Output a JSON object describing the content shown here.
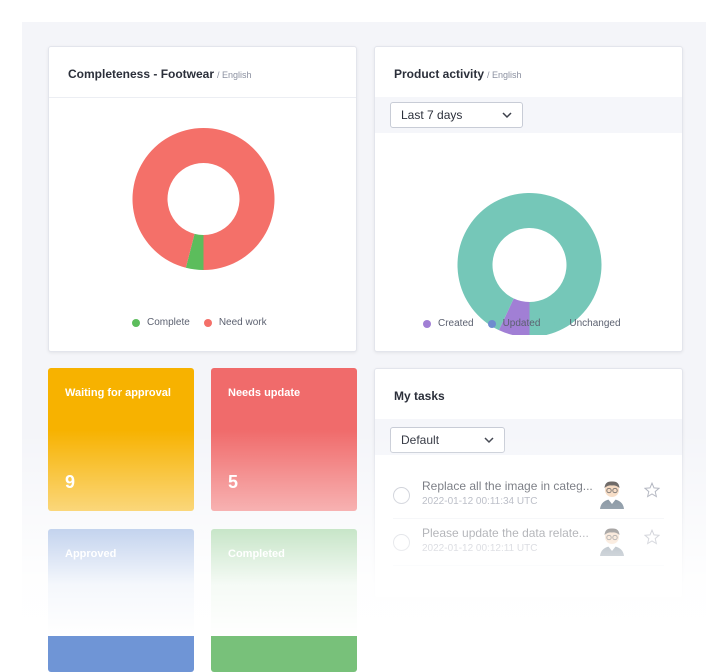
{
  "completeness": {
    "title": "Completeness - Footwear",
    "locale": "/ English",
    "legend": [
      {
        "label": "Complete",
        "color": "#5cbd5c"
      },
      {
        "label": "Need work",
        "color": "#f47069"
      }
    ]
  },
  "activity": {
    "title": "Product activity",
    "locale": "/ English",
    "range_selected": "Last 7 days",
    "legend": [
      {
        "label": "Created",
        "color": "#a17fd5"
      },
      {
        "label": "Updated",
        "color": "#6e8ccf"
      },
      {
        "label": "Unchanged",
        "color": "#75c7b8"
      }
    ]
  },
  "tiles": [
    {
      "label": "Waiting for approval",
      "count": "9",
      "color": "#f7b200"
    },
    {
      "label": "Needs update",
      "count": "5",
      "color": "#f06b6b"
    },
    {
      "label": "Approved",
      "count": "",
      "color": "#6f95d6"
    },
    {
      "label": "Completed",
      "count": "",
      "color": "#78c17a"
    }
  ],
  "tasks": {
    "title": "My tasks",
    "filter_selected": "Default",
    "items": [
      {
        "text": "Replace all the image in categ...",
        "time": "2022-01-12   00:11:34 UTC"
      },
      {
        "text": "Please update the data relate...",
        "time": "2022-01-12   00:12:11 UTC"
      }
    ]
  },
  "chart_data": [
    {
      "type": "pie",
      "variant": "donut",
      "categories": [
        "Complete",
        "Need work"
      ],
      "values": [
        4,
        96
      ],
      "colors": [
        "#5cbd5c",
        "#f47069"
      ],
      "legend": "bottom"
    },
    {
      "type": "pie",
      "variant": "donut",
      "categories": [
        "Created",
        "Updated",
        "Unchanged"
      ],
      "values": [
        7,
        0,
        93
      ],
      "colors": [
        "#a17fd5",
        "#6e8ccf",
        "#75c7b8"
      ],
      "legend": "bottom"
    }
  ]
}
